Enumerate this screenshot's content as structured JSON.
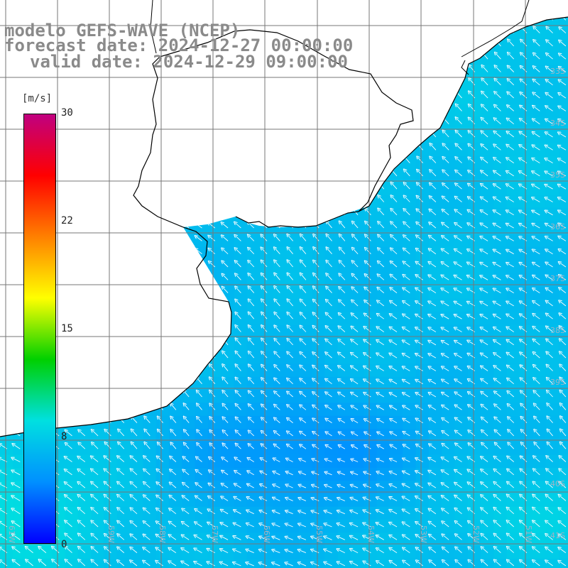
{
  "titles": {
    "line1": "modelo GEFS-WAVE (NCEP)",
    "line2": "forecast date: 2024-12-27 00:00:00",
    "line3": "valid date: 2024-12-29 09:00:00"
  },
  "colorbar": {
    "unit": "[m/s]",
    "ticks": [
      "30",
      "22",
      "15",
      "8",
      "0"
    ],
    "tick_values": [
      30,
      22,
      15,
      8,
      0
    ],
    "min": 0,
    "max": 30,
    "stops": [
      "#0000ff",
      "#0090ff",
      "#00e0e0",
      "#00d000",
      "#ffff00",
      "#ff8000",
      "#ff0000",
      "#c00080"
    ]
  },
  "map": {
    "field": "wind speed with direction arrows",
    "typical_speed_range": [
      4,
      9
    ],
    "dominant_direction": "from south-east (arrows point north-west)",
    "grid": "on",
    "grid_color": "#777777",
    "land_color": "#ffffff",
    "coastline_color": "#000000",
    "lat_labels": [
      "33S",
      "34S",
      "35S",
      "36S",
      "37S",
      "38S",
      "39S",
      "40S",
      "41S"
    ],
    "lon_labels": [
      "61W",
      "59W",
      "58W",
      "57W",
      "56W",
      "55W",
      "54W",
      "53W",
      "52W",
      "51W"
    ]
  }
}
